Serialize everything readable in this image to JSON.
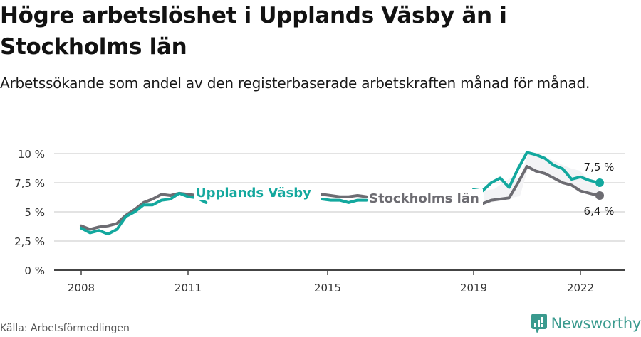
{
  "header": {
    "title": "Högre arbetslöshet i Upplands Väsby än i Stockholms län",
    "subtitle": "Arbetssökande som andel av den registerbaserade arbetskraften månad för månad."
  },
  "footer": {
    "source": "Källa: Arbetsförmedlingen",
    "brand": "Newsworthy"
  },
  "colors": {
    "upplands_vasby": "#13a89e",
    "stockholms_lan": "#6d6c72",
    "grid": "#e3e3e3",
    "axis": "#444444",
    "band": "#f2f2f4",
    "brand": "#3a9a8e"
  },
  "chart_data": {
    "type": "line",
    "title": "Högre arbetslöshet i Upplands Väsby än i Stockholms län",
    "subtitle": "Arbetssökande som andel av den registerbaserade arbetskraften månad för månad.",
    "xlabel": "",
    "ylabel": "",
    "ylim": [
      0,
      10
    ],
    "xlim": [
      2008.0,
      2022.6
    ],
    "grid": true,
    "legend": "inline labels",
    "y_ticks": [
      "0 %",
      "2,5 %",
      "5 %",
      "7,5 %",
      "10 %"
    ],
    "x_ticks": [
      "2008",
      "2011",
      "2015",
      "2019",
      "2022"
    ],
    "x": [
      2008.0,
      2008.25,
      2008.5,
      2008.75,
      2009.0,
      2009.25,
      2009.5,
      2009.75,
      2010.0,
      2010.25,
      2010.5,
      2010.75,
      2011.0,
      2011.25,
      2011.5,
      2014.75,
      2015.0,
      2015.25,
      2015.5,
      2015.75,
      2016.0,
      2019.0,
      2019.25,
      2019.5,
      2019.75,
      2020.0,
      2020.25,
      2020.5,
      2020.75,
      2021.0,
      2021.25,
      2021.5,
      2021.75,
      2022.0,
      2022.25,
      2022.5
    ],
    "series": [
      {
        "name": "Upplands Väsby",
        "values": [
          3.6,
          3.2,
          3.4,
          3.1,
          3.5,
          4.6,
          5.0,
          5.6,
          5.6,
          6.0,
          6.1,
          6.6,
          6.3,
          6.2,
          5.8,
          6.1,
          6.0,
          6.0,
          5.8,
          6.0,
          6.0,
          6.9,
          6.8,
          7.5,
          7.9,
          7.1,
          8.7,
          10.1,
          9.9,
          9.6,
          9.0,
          8.7,
          7.8,
          8.0,
          7.7,
          7.5
        ]
      },
      {
        "name": "Stockholms län",
        "values": [
          3.8,
          3.5,
          3.7,
          3.8,
          4.0,
          4.7,
          5.2,
          5.8,
          6.1,
          6.5,
          6.4,
          6.6,
          6.5,
          6.4,
          6.2,
          6.5,
          6.4,
          6.3,
          6.3,
          6.4,
          6.3,
          null,
          5.7,
          6.0,
          6.1,
          6.2,
          7.5,
          8.9,
          8.5,
          8.3,
          7.9,
          7.5,
          7.3,
          6.8,
          6.6,
          6.4
        ]
      }
    ],
    "annotations": [
      {
        "text": "Upplands Väsby",
        "series": "Upplands Väsby",
        "type": "inline-label"
      },
      {
        "text": "Stockholms län",
        "series": "Stockholms län",
        "type": "inline-label"
      },
      {
        "text": "7,5 %",
        "series": "Upplands Väsby",
        "x": 2022.5,
        "y": 7.5,
        "type": "end-label"
      },
      {
        "text": "6,4 %",
        "series": "Stockholms län",
        "x": 2022.5,
        "y": 6.4,
        "type": "end-label"
      }
    ]
  },
  "labels": {
    "y_ticks": [
      "0 %",
      "2,5 %",
      "5 %",
      "7,5 %",
      "10 %"
    ],
    "x_ticks": [
      "2008",
      "2011",
      "2015",
      "2019",
      "2022"
    ],
    "series_upplands": "Upplands Väsby",
    "series_stockholm": "Stockholms län",
    "end_upplands": "7,5 %",
    "end_stockholm": "6,4 %"
  }
}
